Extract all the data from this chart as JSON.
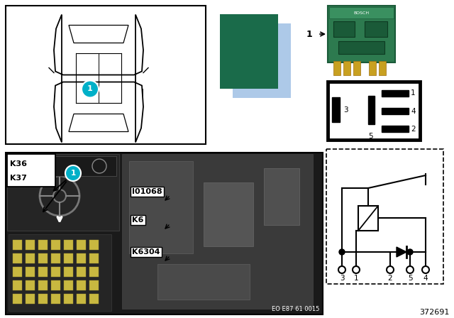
{
  "bg_color": "#ffffff",
  "teal": "#00b0c8",
  "swatch_dark_green": "#1a6b4a",
  "swatch_light_blue": "#adc9e8",
  "relay_green": "#2d7a4f",
  "relay_dark": "#1a5a38",
  "pin_color": "#c8a020",
  "photo_bg": "#1c1c1c",
  "interior_bg": "#222222",
  "engine_bg": "#3a3a3a",
  "component_labels": [
    "K36",
    "K37",
    "I01068",
    "K6",
    "K6304"
  ],
  "schematic_pins_bottom": [
    "3",
    "1",
    "2",
    "5",
    "4"
  ],
  "part_number": "EO E87 61 0015",
  "diagram_number": "372691"
}
